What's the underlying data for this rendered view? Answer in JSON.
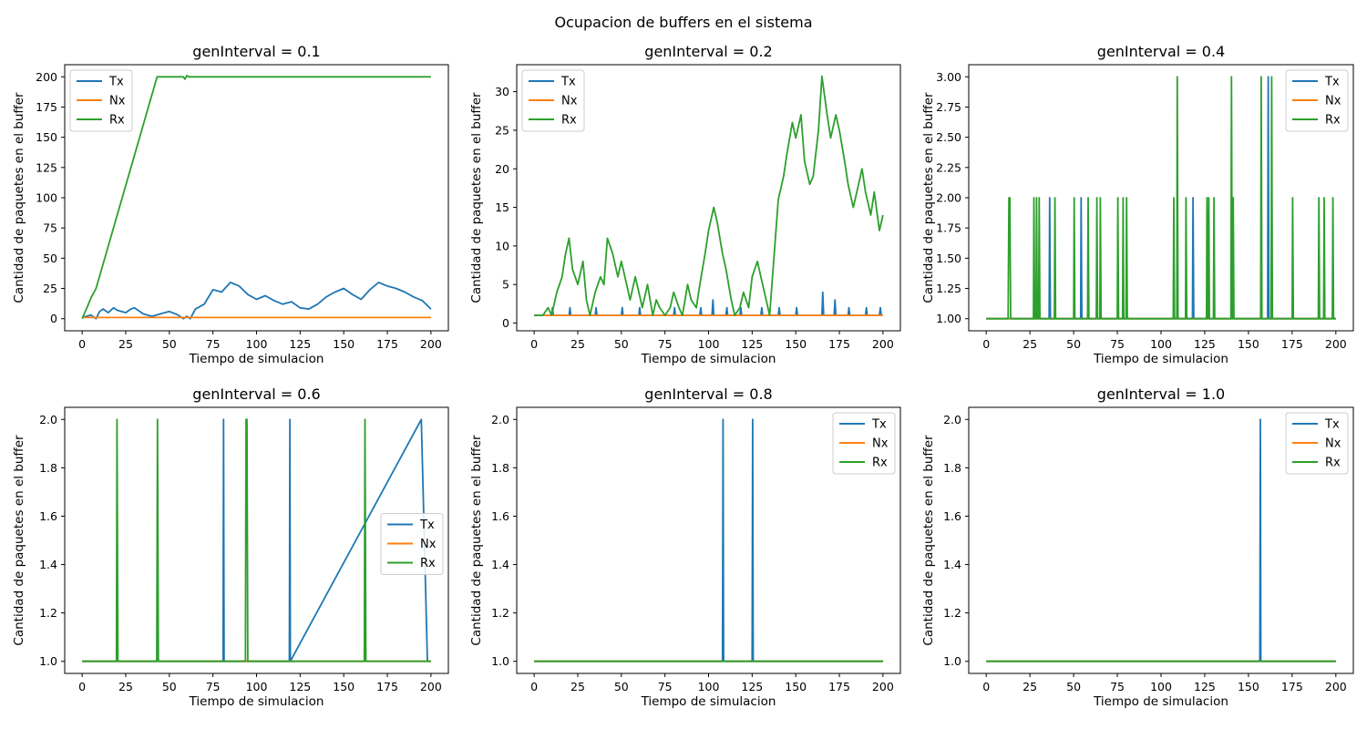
{
  "figure": {
    "suptitle": "Ocupacion de buffers en el sistema"
  },
  "colors": {
    "Tx": "#1f77b4",
    "Nx": "#ff7f0e",
    "Rx": "#2ca02c"
  },
  "chart_data": [
    {
      "type": "line",
      "title": "genInterval = 0.1",
      "xlabel": "Tiempo de simulacion",
      "ylabel": "Cantidad de paquetes en el buffer",
      "xlim": [
        -10,
        210
      ],
      "ylim": [
        -10,
        210
      ],
      "xticks": [
        0,
        25,
        50,
        75,
        100,
        125,
        150,
        175,
        200
      ],
      "yticks": [
        0,
        25,
        50,
        75,
        100,
        125,
        150,
        175,
        200
      ],
      "yticklabels": [
        "0",
        "25",
        "50",
        "75",
        "100",
        "125",
        "150",
        "175",
        "200"
      ],
      "legend_loc": "upper left",
      "series": [
        {
          "name": "Tx",
          "x": [
            0,
            5,
            8,
            10,
            12,
            15,
            18,
            20,
            25,
            28,
            30,
            35,
            40,
            45,
            50,
            55,
            58,
            60,
            62,
            65,
            70,
            75,
            80,
            85,
            90,
            95,
            100,
            105,
            110,
            115,
            120,
            125,
            130,
            135,
            140,
            145,
            150,
            155,
            160,
            165,
            170,
            175,
            180,
            185,
            190,
            195,
            200
          ],
          "y": [
            1,
            3,
            0,
            6,
            8,
            5,
            9,
            7,
            5,
            8,
            9,
            4,
            2,
            4,
            6,
            3,
            0,
            2,
            0,
            8,
            12,
            24,
            22,
            30,
            27,
            20,
            16,
            19,
            15,
            12,
            14,
            9,
            8,
            12,
            18,
            22,
            25,
            20,
            16,
            24,
            30,
            27,
            25,
            22,
            18,
            15,
            8
          ]
        },
        {
          "name": "Nx",
          "x": [
            0,
            200
          ],
          "y": [
            1,
            1
          ]
        },
        {
          "name": "Rx",
          "x": [
            0,
            3,
            5,
            8,
            43,
            58,
            59,
            60,
            61,
            200
          ],
          "y": [
            0,
            10,
            17,
            25,
            200,
            200,
            198,
            201,
            200,
            200
          ]
        }
      ]
    },
    {
      "type": "line",
      "title": "genInterval = 0.2",
      "xlabel": "Tiempo de simulacion",
      "ylabel": "Cantidad de paquetes en el buffer",
      "xlim": [
        -10,
        210
      ],
      "ylim": [
        -1,
        33.5
      ],
      "xticks": [
        0,
        25,
        50,
        75,
        100,
        125,
        150,
        175,
        200
      ],
      "yticks": [
        0,
        5,
        10,
        15,
        20,
        25,
        30
      ],
      "yticklabels": [
        "0",
        "5",
        "10",
        "15",
        "20",
        "25",
        "30"
      ],
      "legend_loc": "upper left",
      "series": [
        {
          "name": "Tx",
          "x": [
            0,
            10,
            10.5,
            11,
            20,
            20.5,
            21,
            35,
            35.5,
            36,
            50,
            50.5,
            51,
            60,
            60.5,
            61,
            80,
            80.5,
            81,
            95,
            95.5,
            96,
            102,
            102.5,
            103,
            110,
            110.5,
            111,
            118,
            118.5,
            119,
            130,
            130.5,
            131,
            140,
            140.5,
            141,
            150,
            150.5,
            151,
            165,
            165.5,
            166,
            172,
            172.5,
            173,
            180,
            180.5,
            181,
            190,
            190.5,
            191,
            198,
            198.5,
            199
          ],
          "y": [
            1,
            1,
            2,
            1,
            1,
            2,
            1,
            1,
            2,
            1,
            1,
            2,
            1,
            1,
            2,
            1,
            1,
            2,
            1,
            1,
            2,
            1,
            1,
            3,
            1,
            1,
            2,
            1,
            1,
            2,
            1,
            1,
            2,
            1,
            1,
            2,
            1,
            1,
            2,
            1,
            1,
            4,
            1,
            1,
            3,
            1,
            1,
            2,
            1,
            1,
            2,
            1,
            1,
            2,
            1
          ]
        },
        {
          "name": "Nx",
          "x": [
            0,
            200
          ],
          "y": [
            1,
            1
          ]
        },
        {
          "name": "Rx",
          "x": [
            0,
            5,
            8,
            10,
            13,
            16,
            18,
            20,
            22,
            25,
            28,
            30,
            32,
            35,
            38,
            40,
            42,
            45,
            48,
            50,
            53,
            55,
            58,
            60,
            62,
            65,
            68,
            70,
            72,
            75,
            78,
            80,
            83,
            85,
            88,
            90,
            93,
            95,
            98,
            100,
            103,
            105,
            108,
            110,
            113,
            115,
            118,
            120,
            123,
            125,
            128,
            130,
            133,
            135,
            138,
            140,
            143,
            145,
            148,
            150,
            153,
            155,
            158,
            160,
            163,
            165,
            168,
            170,
            173,
            175,
            178,
            180,
            183,
            185,
            188,
            190,
            193,
            195,
            198,
            200
          ],
          "y": [
            1,
            1,
            2,
            1,
            4,
            6,
            9,
            11,
            7,
            5,
            8,
            3,
            1,
            4,
            6,
            5,
            11,
            9,
            6,
            8,
            5,
            3,
            6,
            4,
            2,
            5,
            1,
            3,
            2,
            1,
            2,
            4,
            2,
            1,
            5,
            3,
            2,
            5,
            9,
            12,
            15,
            13,
            9,
            7,
            3,
            1,
            2,
            4,
            2,
            6,
            8,
            6,
            3,
            1,
            10,
            16,
            19,
            22,
            26,
            24,
            27,
            21,
            18,
            19,
            25,
            32,
            27,
            24,
            27,
            25,
            21,
            18,
            15,
            17,
            20,
            17,
            14,
            17,
            12,
            14
          ]
        }
      ]
    },
    {
      "type": "line",
      "title": "genInterval = 0.4",
      "xlabel": "Tiempo de simulacion",
      "ylabel": "Cantidad de paquetes en el buffer",
      "xlim": [
        -10,
        210
      ],
      "ylim": [
        0.9,
        3.1
      ],
      "xticks": [
        0,
        25,
        50,
        75,
        100,
        125,
        150,
        175,
        200
      ],
      "yticks": [
        1.0,
        1.25,
        1.5,
        1.75,
        2.0,
        2.25,
        2.5,
        2.75,
        3.0
      ],
      "yticklabels": [
        "1.00",
        "1.25",
        "1.50",
        "1.75",
        "2.00",
        "2.25",
        "2.50",
        "2.75",
        "3.00"
      ],
      "legend_loc": "upper right",
      "series": [
        {
          "name": "Tx",
          "x": [
            0,
            36,
            36.3,
            36.7,
            54,
            54.3,
            54.7,
            118,
            118.3,
            118.7,
            161,
            161.3,
            161.7,
            200
          ],
          "y": [
            1,
            1,
            2,
            1,
            1,
            2,
            1,
            1,
            2,
            1,
            1,
            3,
            1,
            1
          ]
        },
        {
          "name": "Nx",
          "x": [
            0,
            200
          ],
          "y": [
            1,
            1
          ]
        },
        {
          "name": "Rx",
          "x": [
            0,
            12.5,
            13,
            13.5,
            14,
            27,
            27.3,
            27.7,
            28.5,
            28.8,
            29.2,
            30,
            30.3,
            30.7,
            39,
            39.3,
            39.7,
            50,
            50.3,
            50.7,
            58,
            58.3,
            58.7,
            63,
            63.3,
            63.7,
            65,
            65.3,
            65.7,
            75,
            75.3,
            75.7,
            78,
            78.3,
            78.7,
            80,
            80.3,
            80.7,
            107,
            107.3,
            107.7,
            109,
            109.3,
            109.7,
            114,
            114.3,
            114.7,
            126,
            126.3,
            126.7,
            127,
            127.3,
            127.7,
            130,
            130.3,
            130.7,
            140,
            140.3,
            140.7,
            141,
            141.3,
            141.7,
            157,
            157.3,
            157.7,
            163,
            163.3,
            163.7,
            175,
            175.3,
            175.7,
            190,
            190.3,
            190.7,
            193,
            193.3,
            193.7,
            198,
            198.3,
            198.7,
            200
          ],
          "y": [
            1,
            1,
            2,
            2,
            1,
            1,
            2,
            1,
            1,
            2,
            1,
            1,
            2,
            1,
            1,
            2,
            1,
            1,
            2,
            1,
            1,
            2,
            1,
            1,
            2,
            1,
            1,
            2,
            1,
            1,
            2,
            1,
            1,
            2,
            1,
            1,
            2,
            1,
            1,
            2,
            1,
            1,
            3,
            1,
            1,
            2,
            1,
            1,
            2,
            1,
            1,
            2,
            1,
            1,
            2,
            1,
            1,
            3,
            1,
            1,
            2,
            1,
            1,
            3,
            1,
            1,
            3,
            1,
            1,
            2,
            1,
            1,
            2,
            1,
            1,
            2,
            1,
            1,
            2,
            1,
            1
          ]
        }
      ]
    },
    {
      "type": "line",
      "title": "genInterval = 0.6",
      "xlabel": "Tiempo de simulacion",
      "ylabel": "Cantidad de paquetes en el buffer",
      "xlim": [
        -10,
        210
      ],
      "ylim": [
        0.95,
        2.05
      ],
      "xticks": [
        0,
        25,
        50,
        75,
        100,
        125,
        150,
        175,
        200
      ],
      "yticks": [
        1.0,
        1.2,
        1.4,
        1.6,
        1.8,
        2.0
      ],
      "yticklabels": [
        "1.0",
        "1.2",
        "1.4",
        "1.6",
        "1.8",
        "2.0"
      ],
      "legend_loc": "center right",
      "series": [
        {
          "name": "Tx",
          "x": [
            0,
            80.8,
            81.1,
            81.4,
            118.8,
            119.1,
            119.4,
            194.5,
            198,
            200
          ],
          "y": [
            1,
            1,
            2,
            1,
            1,
            2,
            1,
            2,
            1,
            1
          ]
        },
        {
          "name": "Nx",
          "x": [
            0,
            200
          ],
          "y": [
            1,
            1
          ]
        },
        {
          "name": "Rx",
          "x": [
            0,
            19.7,
            20,
            20.5,
            42.8,
            43.2,
            43.7,
            93.6,
            94,
            94.5,
            95,
            161.8,
            162.2,
            162.7,
            200
          ],
          "y": [
            1,
            1,
            2,
            1,
            1,
            2,
            1,
            1,
            2,
            2,
            1,
            1,
            2,
            1,
            1
          ]
        }
      ]
    },
    {
      "type": "line",
      "title": "genInterval = 0.8",
      "xlabel": "Tiempo de simulacion",
      "ylabel": "Cantidad de paquetes en el buffer",
      "xlim": [
        -10,
        210
      ],
      "ylim": [
        0.95,
        2.05
      ],
      "xticks": [
        0,
        25,
        50,
        75,
        100,
        125,
        150,
        175,
        200
      ],
      "yticks": [
        1.0,
        1.2,
        1.4,
        1.6,
        1.8,
        2.0
      ],
      "yticklabels": [
        "1.0",
        "1.2",
        "1.4",
        "1.6",
        "1.8",
        "2.0"
      ],
      "legend_loc": "upper right",
      "series": [
        {
          "name": "Tx",
          "x": [
            0,
            108,
            108.3,
            108.6,
            125,
            125.3,
            125.6,
            200
          ],
          "y": [
            1,
            1,
            2,
            1,
            1,
            2,
            1,
            1
          ]
        },
        {
          "name": "Nx",
          "x": [
            0,
            200
          ],
          "y": [
            1,
            1
          ]
        },
        {
          "name": "Rx",
          "x": [
            0,
            200
          ],
          "y": [
            1,
            1
          ]
        }
      ]
    },
    {
      "type": "line",
      "title": "genInterval = 1.0",
      "xlabel": "Tiempo de simulacion",
      "ylabel": "Cantidad de paquetes en el buffer",
      "xlim": [
        -10,
        210
      ],
      "ylim": [
        0.95,
        2.05
      ],
      "xticks": [
        0,
        25,
        50,
        75,
        100,
        125,
        150,
        175,
        200
      ],
      "yticks": [
        1.0,
        1.2,
        1.4,
        1.6,
        1.8,
        2.0
      ],
      "yticklabels": [
        "1.0",
        "1.2",
        "1.4",
        "1.6",
        "1.8",
        "2.0"
      ],
      "legend_loc": "upper right",
      "series": [
        {
          "name": "Tx",
          "x": [
            0,
            156.5,
            156.8,
            157.1,
            200
          ],
          "y": [
            1,
            1,
            2,
            1,
            1
          ]
        },
        {
          "name": "Nx",
          "x": [
            0,
            200
          ],
          "y": [
            1,
            1
          ]
        },
        {
          "name": "Rx",
          "x": [
            0,
            200
          ],
          "y": [
            1,
            1
          ]
        }
      ]
    }
  ]
}
